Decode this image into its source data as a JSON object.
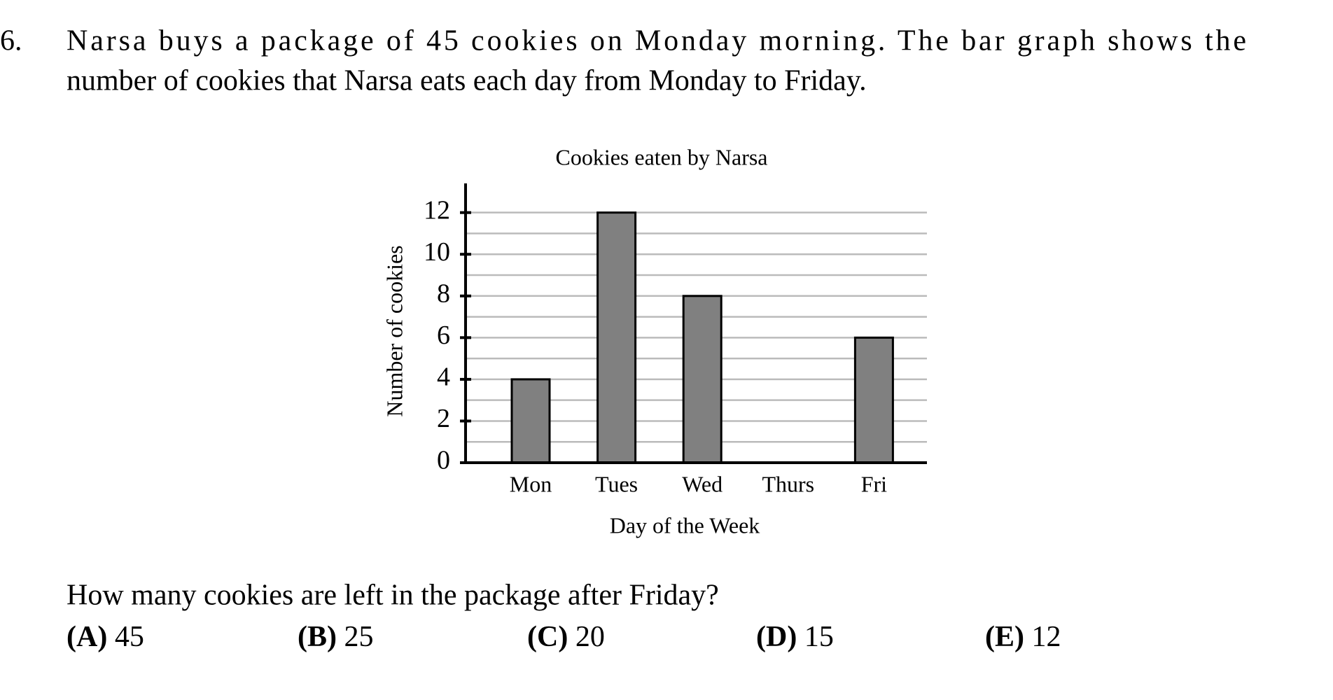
{
  "question": {
    "number": "6.",
    "lines": [
      "Narsa buys a package of 45 cookies on Monday morning.  The bar graph shows the",
      "number of cookies that Narsa eats each day from Monday to Friday."
    ],
    "prompt": "How many cookies are left in the package after Friday?",
    "choices": [
      {
        "letter": "(A)",
        "text": "45"
      },
      {
        "letter": "(B)",
        "text": "25"
      },
      {
        "letter": "(C)",
        "text": "20"
      },
      {
        "letter": "(D)",
        "text": "15"
      },
      {
        "letter": "(E)",
        "text": "12"
      }
    ]
  },
  "chart_data": {
    "type": "bar",
    "title": "Cookies eaten by Narsa",
    "x_label": "Day of the Week",
    "y_label": "Number of cookies",
    "categories": [
      "Mon",
      "Tues",
      "Wed",
      "Thurs",
      "Fri"
    ],
    "values": [
      4,
      12,
      8,
      0,
      6
    ],
    "color": "#808080",
    "ylim": [
      0,
      13.4
    ],
    "yticks": [
      0,
      2,
      4,
      6,
      8,
      10,
      12
    ],
    "minor_yticks": [
      1,
      3,
      5,
      7,
      9,
      11
    ],
    "grid": true
  }
}
